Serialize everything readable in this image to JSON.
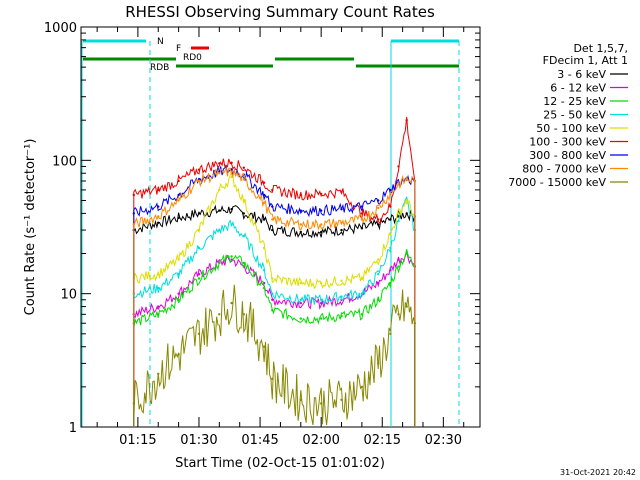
{
  "chart_data": {
    "type": "line",
    "title": "RHESSI Observing Summary Count Rates",
    "xlabel": "Start Time (02-Oct-15 01:01:02)",
    "ylabel": "Count Rate (s⁻¹ detector⁻¹)",
    "yscale": "log",
    "ylim": [
      1,
      1000
    ],
    "xlim": [
      "01:01:02",
      "02:39:00"
    ],
    "x_ticks": [
      "01:15",
      "01:30",
      "01:45",
      "02:00",
      "02:15",
      "02:30"
    ],
    "y_ticks": [
      "1",
      "10",
      "100",
      "1000"
    ],
    "grid": false,
    "legend_position": "right",
    "legend_header": [
      "Det 1,5,7,",
      "FDecim 1, Att 1"
    ],
    "series": [
      {
        "name": "3 - 6 keV",
        "color": "#000000",
        "x": [
          "01:14",
          "01:20",
          "01:25",
          "01:30",
          "01:35",
          "01:38",
          "01:41",
          "01:46",
          "01:48",
          "01:55",
          "02:00",
          "02:05",
          "02:10",
          "02:14",
          "02:17",
          "02:19",
          "02:21",
          "02:23"
        ],
        "values": [
          30,
          34,
          37,
          40,
          42,
          43,
          40,
          36,
          30,
          29,
          29,
          30,
          31,
          33,
          36,
          38,
          40,
          38
        ]
      },
      {
        "name": "6 - 12 keV",
        "color": "#dd00dd",
        "x": [
          "01:14",
          "01:20",
          "01:25",
          "01:30",
          "01:35",
          "01:38",
          "01:41",
          "01:46",
          "01:48",
          "01:55",
          "02:00",
          "02:05",
          "02:10",
          "02:14",
          "02:17",
          "02:19",
          "02:21",
          "02:23"
        ],
        "values": [
          7,
          8,
          10,
          14,
          17,
          18,
          16,
          12,
          9,
          8.5,
          8.5,
          9,
          10,
          12,
          15,
          18,
          20,
          16
        ]
      },
      {
        "name": "12 - 25 keV",
        "color": "#00dd00",
        "x": [
          "01:14",
          "01:20",
          "01:25",
          "01:30",
          "01:35",
          "01:38",
          "01:41",
          "01:46",
          "01:48",
          "01:55",
          "02:00",
          "02:05",
          "02:10",
          "02:14",
          "02:17",
          "02:19",
          "02:21",
          "02:23"
        ],
        "values": [
          6,
          7,
          9,
          13,
          17,
          19,
          17,
          11,
          7.5,
          6.5,
          6.5,
          6.8,
          7,
          9,
          12,
          16,
          20,
          16
        ]
      },
      {
        "name": "25 - 50 keV",
        "color": "#00dddd",
        "x": [
          "01:14",
          "01:20",
          "01:25",
          "01:30",
          "01:35",
          "01:38",
          "01:41",
          "01:46",
          "01:48",
          "01:55",
          "02:00",
          "02:05",
          "02:10",
          "02:14",
          "02:17",
          "02:19",
          "02:21",
          "02:23"
        ],
        "values": [
          10,
          11,
          14,
          22,
          30,
          33,
          27,
          15,
          10,
          9,
          9,
          9.5,
          10,
          14,
          22,
          35,
          50,
          30
        ]
      },
      {
        "name": "50 - 100 keV",
        "color": "#dddd00",
        "x": [
          "01:14",
          "01:20",
          "01:25",
          "01:30",
          "01:35",
          "01:38",
          "01:41",
          "01:46",
          "01:48",
          "01:55",
          "02:00",
          "02:05",
          "02:10",
          "02:14",
          "02:17",
          "02:19",
          "02:21",
          "02:23"
        ],
        "values": [
          13,
          14,
          18,
          30,
          60,
          75,
          50,
          22,
          13,
          12,
          12,
          12.5,
          13,
          18,
          28,
          40,
          50,
          38
        ]
      },
      {
        "name": "100 - 300 keV",
        "color": "#ee0000",
        "x": [
          "01:14",
          "01:20",
          "01:25",
          "01:30",
          "01:35",
          "01:38",
          "01:41",
          "01:46",
          "01:48",
          "01:55",
          "02:00",
          "02:05",
          "02:10",
          "02:14",
          "02:17",
          "02:19",
          "02:21",
          "02:23"
        ],
        "values": [
          55,
          60,
          70,
          85,
          95,
          96,
          88,
          68,
          60,
          55,
          56,
          58,
          40,
          36,
          45,
          90,
          200,
          70
        ]
      },
      {
        "name": "300 - 800 keV",
        "color": "#0000ee",
        "x": [
          "01:14",
          "01:20",
          "01:25",
          "01:30",
          "01:35",
          "01:38",
          "01:41",
          "01:46",
          "01:48",
          "01:55",
          "02:00",
          "02:05",
          "02:10",
          "02:14",
          "02:17",
          "02:19",
          "02:21",
          "02:23"
        ],
        "values": [
          40,
          45,
          55,
          72,
          82,
          85,
          78,
          55,
          45,
          42,
          42,
          43,
          45,
          50,
          60,
          68,
          72,
          70
        ]
      },
      {
        "name": "800 - 7000 keV",
        "color": "#ff8800",
        "x": [
          "01:14",
          "01:20",
          "01:25",
          "01:30",
          "01:35",
          "01:38",
          "01:41",
          "01:46",
          "01:48",
          "01:55",
          "02:00",
          "02:05",
          "02:10",
          "02:14",
          "02:17",
          "02:19",
          "02:21",
          "02:23"
        ],
        "values": [
          33,
          38,
          50,
          70,
          80,
          82,
          72,
          48,
          36,
          33,
          33,
          34,
          36,
          44,
          56,
          66,
          72,
          70
        ]
      },
      {
        "name": "7000 - 15000 keV",
        "color": "#888800",
        "x": [
          "01:14",
          "01:20",
          "01:25",
          "01:30",
          "01:35",
          "01:38",
          "01:41",
          "01:46",
          "01:48",
          "01:55",
          "02:00",
          "02:05",
          "02:10",
          "02:14",
          "02:17",
          "02:19",
          "02:21",
          "02:23"
        ],
        "values": [
          1.5,
          2.5,
          3.5,
          5,
          7,
          8.5,
          7,
          4,
          2.3,
          1.6,
          1.5,
          1.6,
          2,
          3,
          5,
          7,
          8,
          6
        ]
      }
    ],
    "annotations": [
      {
        "label": "N",
        "color": "#00dddd"
      },
      {
        "label": "F",
        "color": "#ee0000"
      },
      {
        "label": "RD0",
        "color": "#008800"
      },
      {
        "label": "RDB",
        "color": "#008800"
      }
    ],
    "footer_stamp": "31-Oct-2021 20:42"
  }
}
